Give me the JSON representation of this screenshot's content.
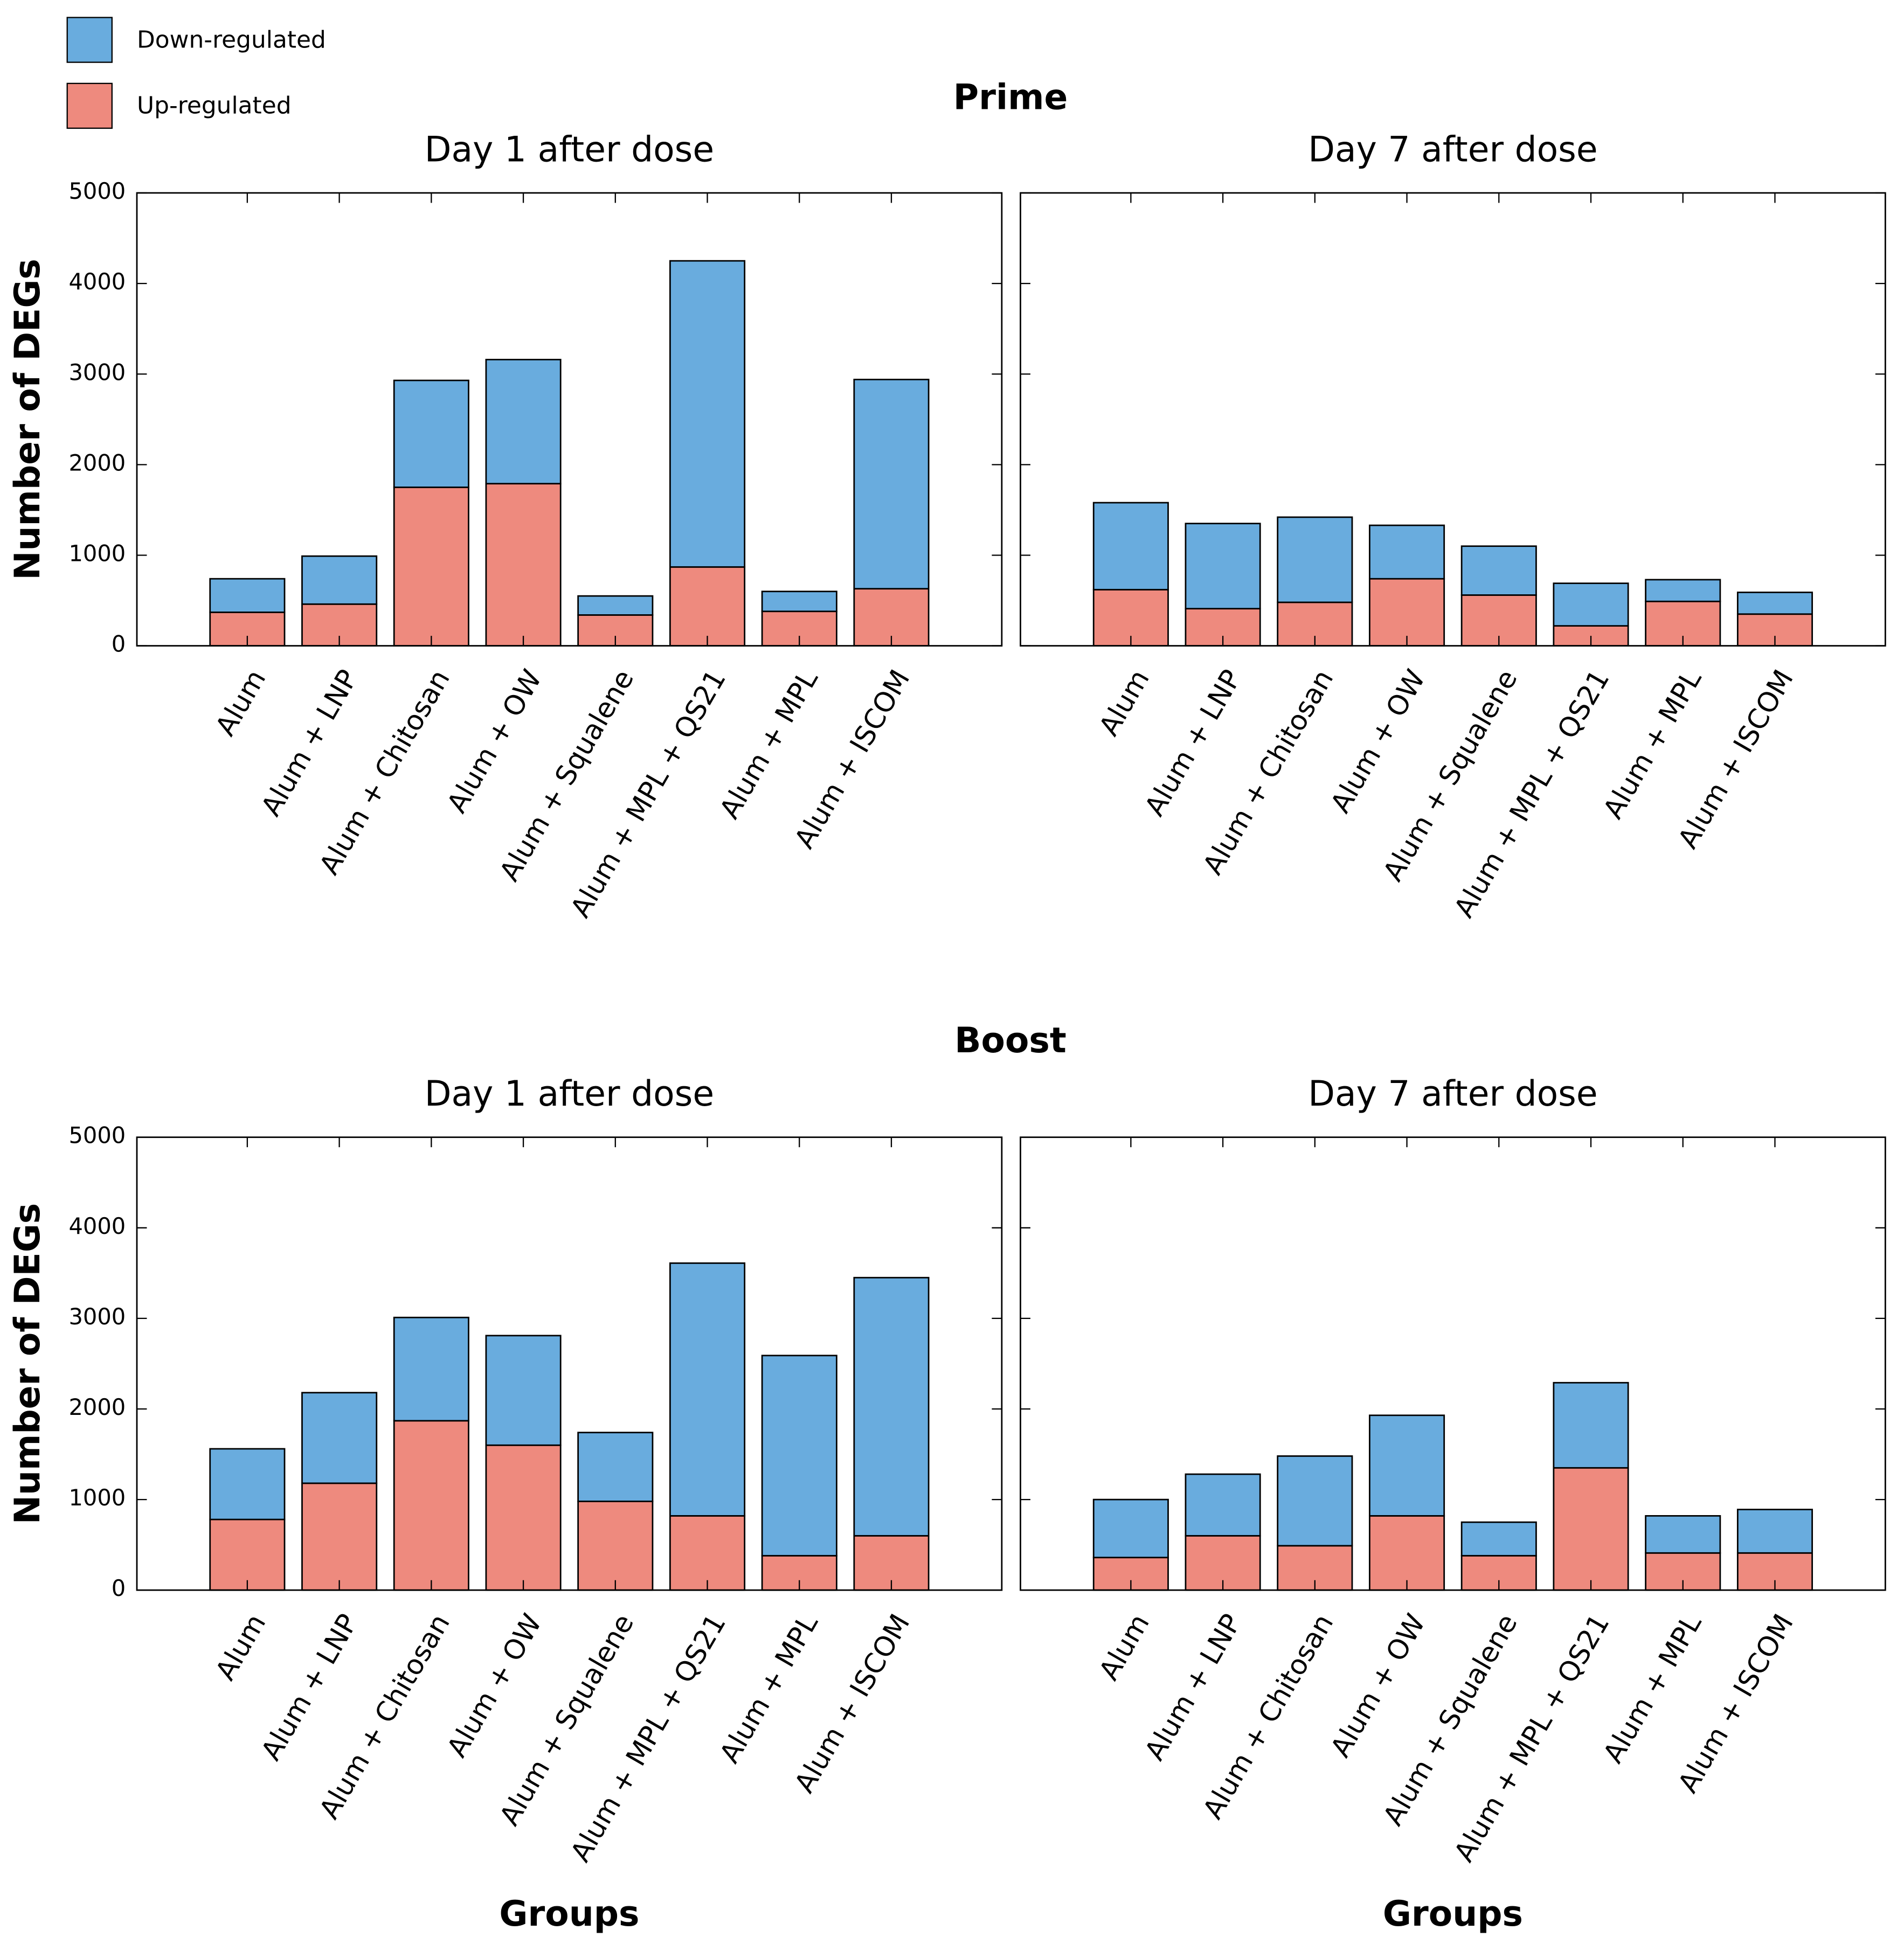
{
  "section_titles": [
    "Prime",
    "Boost"
  ],
  "chart_data": [
    {
      "type": "bar",
      "stacked": true,
      "title": "Day 1 after dose",
      "y_label": "Number of DEGs",
      "categories": [
        "Alum",
        "Alum + LNP",
        "Alum + Chitosan",
        "Alum + OW",
        "Alum + Squalene",
        "Alum + MPL + QS21",
        "Alum + MPL",
        "Alum + ISCOM"
      ],
      "series": [
        {
          "name": "Up-regulated",
          "color": "#ee8a7e",
          "values": [
            370,
            460,
            1750,
            1790,
            340,
            870,
            380,
            630
          ]
        },
        {
          "name": "Down-regulated",
          "color": "#69acde",
          "values": [
            370,
            530,
            1180,
            1370,
            210,
            3380,
            220,
            2310
          ]
        }
      ],
      "ylim": [
        0,
        5000
      ],
      "yticks": [
        0,
        1000,
        2000,
        3000,
        4000,
        5000
      ]
    },
    {
      "type": "bar",
      "stacked": true,
      "title": "Day 7 after dose",
      "categories": [
        "Alum",
        "Alum + LNP",
        "Alum + Chitosan",
        "Alum + OW",
        "Alum + Squalene",
        "Alum + MPL + QS21",
        "Alum + MPL",
        "Alum + ISCOM"
      ],
      "series": [
        {
          "name": "Up-regulated",
          "color": "#ee8a7e",
          "values": [
            620,
            410,
            480,
            740,
            560,
            220,
            490,
            350
          ]
        },
        {
          "name": "Down-regulated",
          "color": "#69acde",
          "values": [
            960,
            940,
            940,
            590,
            540,
            470,
            240,
            240
          ]
        }
      ],
      "ylim": [
        0,
        5000
      ],
      "yticks": [
        0,
        1000,
        2000,
        3000,
        4000,
        5000
      ]
    },
    {
      "type": "bar",
      "stacked": true,
      "title": "Day 1 after dose",
      "y_label": "Number of DEGs",
      "x_label": "Groups",
      "categories": [
        "Alum",
        "Alum + LNP",
        "Alum + Chitosan",
        "Alum + OW",
        "Alum + Squalene",
        "Alum + MPL + QS21",
        "Alum + MPL",
        "Alum + ISCOM"
      ],
      "series": [
        {
          "name": "Up-regulated",
          "color": "#ee8a7e",
          "values": [
            780,
            1180,
            1870,
            1600,
            980,
            820,
            380,
            600
          ]
        },
        {
          "name": "Down-regulated",
          "color": "#69acde",
          "values": [
            780,
            1000,
            1140,
            1210,
            760,
            2790,
            2210,
            2850
          ]
        }
      ],
      "ylim": [
        0,
        5000
      ],
      "yticks": [
        0,
        1000,
        2000,
        3000,
        4000,
        5000
      ]
    },
    {
      "type": "bar",
      "stacked": true,
      "title": "Day 7 after dose",
      "x_label": "Groups",
      "categories": [
        "Alum",
        "Alum + LNP",
        "Alum + Chitosan",
        "Alum + OW",
        "Alum + Squalene",
        "Alum + MPL + QS21",
        "Alum + MPL",
        "Alum + ISCOM"
      ],
      "series": [
        {
          "name": "Up-regulated",
          "color": "#ee8a7e",
          "values": [
            360,
            600,
            490,
            820,
            380,
            1350,
            410,
            410
          ]
        },
        {
          "name": "Down-regulated",
          "color": "#69acde",
          "values": [
            640,
            680,
            990,
            1110,
            370,
            940,
            410,
            480
          ]
        }
      ],
      "ylim": [
        0,
        5000
      ],
      "yticks": [
        0,
        1000,
        2000,
        3000,
        4000,
        5000
      ]
    }
  ]
}
